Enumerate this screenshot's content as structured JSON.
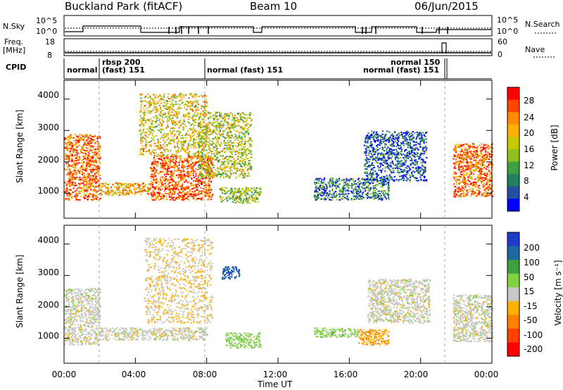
{
  "header": {
    "station": "Buckland Park (fitACF)",
    "beam": "Beam 10",
    "date": "06/Jun/2015"
  },
  "top_panels": {
    "nsky_label": "N.Sky",
    "nsky_ticks": [
      "10^5",
      "10^0"
    ],
    "nsearch_label": "N.Search",
    "nsearch_ticks": [
      "10^5",
      "10^0"
    ],
    "freq_label": "Freq.",
    "freq_unit": "[MHz]",
    "freq_ticks": [
      "18",
      "8"
    ],
    "nave_label": "Nave",
    "nave_ticks": [
      "60",
      "0"
    ],
    "cpid_label": "CPID",
    "cpid_segments": [
      {
        "line1": "normal",
        "line2": ""
      },
      {
        "line1": "rbsp 200",
        "line2": "(fast) 151"
      },
      {
        "line1": "normal (fast) 151",
        "line2": ""
      },
      {
        "line1": "normal 150",
        "line2": "normal (fast) 151"
      }
    ]
  },
  "panels": {
    "ylabel": "Slant Range [km]",
    "y_ticks": [
      "4000",
      "3000",
      "2000",
      "1000"
    ],
    "x_ticks": [
      "00:00",
      "04:00",
      "08:00",
      "12:00",
      "16:00",
      "20:00",
      "00:00"
    ],
    "xlabel": "Time UT",
    "power_colorbar": {
      "label": "Power [dB]",
      "ticks": [
        "28",
        "24",
        "20",
        "16",
        "12",
        "8",
        "4"
      ],
      "colors": [
        "#ff0000",
        "#ff4500",
        "#ff8c00",
        "#ffb000",
        "#c8c800",
        "#90c020",
        "#40a040",
        "#208060",
        "#2050a0",
        "#0000ff"
      ]
    },
    "velocity_colorbar": {
      "label": "Velocity [m s⁻¹]",
      "ticks": [
        "200",
        "100",
        "50",
        "15",
        "-15",
        "-50",
        "-100",
        "-200"
      ],
      "colors": [
        "#1e3cc8",
        "#1a6aa0",
        "#40a040",
        "#80d040",
        "#c8c8c8",
        "#ffb000",
        "#ff8000",
        "#ff4000",
        "#ff0000"
      ]
    }
  },
  "chart_data": [
    {
      "type": "heatmap",
      "title": "Buckland Park (fitACF) Beam 10 06/Jun/2015",
      "xlabel": "Time UT",
      "ylabel": "Slant Range [km]",
      "xlim": [
        "00:00",
        "24:00"
      ],
      "ylim": [
        200,
        4600
      ],
      "colorbar_label": "Power [dB]",
      "colorbar_range": [
        3,
        32
      ],
      "regions": [
        {
          "t0": 0.0,
          "t1": 2.0,
          "r0": 800,
          "r1": 2900,
          "value": 26
        },
        {
          "t0": 2.0,
          "t1": 4.8,
          "r0": 950,
          "r1": 1350,
          "value": 22
        },
        {
          "t0": 4.8,
          "t1": 8.3,
          "r0": 800,
          "r1": 2200,
          "value": 27
        },
        {
          "t0": 4.2,
          "t1": 8.0,
          "r0": 2200,
          "r1": 4200,
          "value": 20
        },
        {
          "t0": 7.5,
          "t1": 10.5,
          "r0": 1500,
          "r1": 3600,
          "value": 18
        },
        {
          "t0": 8.7,
          "t1": 11.0,
          "r0": 700,
          "r1": 1200,
          "value": 16
        },
        {
          "t0": 14.0,
          "t1": 18.2,
          "r0": 800,
          "r1": 1500,
          "value": 10
        },
        {
          "t0": 16.8,
          "t1": 20.3,
          "r0": 1400,
          "r1": 3000,
          "value": 8
        },
        {
          "t0": 21.8,
          "t1": 24.0,
          "r0": 900,
          "r1": 2600,
          "value": 26
        }
      ]
    },
    {
      "type": "heatmap",
      "title": "",
      "xlabel": "Time UT",
      "ylabel": "Slant Range [km]",
      "xlim": [
        "00:00",
        "24:00"
      ],
      "ylim": [
        200,
        4600
      ],
      "colorbar_label": "Velocity [m s⁻¹]",
      "colorbar_range": [
        -200,
        200
      ],
      "regions": [
        {
          "t0": 0.0,
          "t1": 2.0,
          "r0": 800,
          "r1": 2600,
          "value": 0
        },
        {
          "t0": 2.0,
          "t1": 8.0,
          "r0": 950,
          "r1": 1350,
          "value": 0
        },
        {
          "t0": 4.5,
          "t1": 8.3,
          "r0": 1500,
          "r1": 4200,
          "value": -20
        },
        {
          "t0": 8.8,
          "t1": 9.8,
          "r0": 2900,
          "r1": 3300,
          "value": 150
        },
        {
          "t0": 9.0,
          "t1": 11.0,
          "r0": 700,
          "r1": 1200,
          "value": 40
        },
        {
          "t0": 14.0,
          "t1": 16.5,
          "r0": 1050,
          "r1": 1350,
          "value": 40
        },
        {
          "t0": 16.5,
          "t1": 18.2,
          "r0": 800,
          "r1": 1300,
          "value": -60
        },
        {
          "t0": 17.0,
          "t1": 20.5,
          "r0": 1500,
          "r1": 2900,
          "value": 0
        },
        {
          "t0": 21.8,
          "t1": 24.0,
          "r0": 900,
          "r1": 2400,
          "value": 0
        }
      ]
    }
  ]
}
